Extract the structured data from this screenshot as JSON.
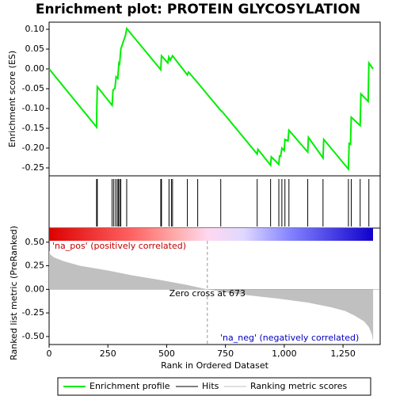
{
  "chart_data": [
    {
      "type": "line",
      "title": "Enrichment plot: PROTEIN GLYCOSYLATION",
      "y_label": "Enrichment score (ES)",
      "xlim": [
        0,
        1408
      ],
      "ylim": [
        -0.27,
        0.118
      ],
      "yticks": [
        {
          "value": 0.1,
          "label": "0.10"
        },
        {
          "value": 0.05,
          "label": "0.05"
        },
        {
          "value": 0,
          "label": "0.00"
        },
        {
          "value": -0.05,
          "label": "-0.05"
        },
        {
          "value": -0.1,
          "label": "-0.10"
        },
        {
          "value": -0.15,
          "label": "-0.15"
        },
        {
          "value": -0.2,
          "label": "-0.20"
        },
        {
          "value": -0.25,
          "label": "-0.25"
        }
      ],
      "series": [
        {
          "name": "Enrichment profile",
          "color": "#00ee00",
          "x": [
            0,
            202,
            203,
            205,
            268,
            272,
            280,
            285,
            292,
            297,
            300,
            305,
            325,
            330,
            475,
            478,
            505,
            509,
            515,
            525,
            588,
            593,
            632,
            730,
            735,
            885,
            888,
            942,
            945,
            977,
            980,
            985,
            990,
            1000,
            1003,
            1016,
            1020,
            1100,
            1103,
            1165,
            1168,
            1273,
            1276,
            1282,
            1285,
            1323,
            1326,
            1357,
            1360,
            1378
          ],
          "values": [
            0,
            -0.147,
            -0.097,
            -0.045,
            -0.092,
            -0.053,
            -0.049,
            -0.02,
            -0.024,
            0.015,
            0.013,
            0.05,
            0.085,
            0.102,
            -0.002,
            0.033,
            0.015,
            0.03,
            0.022,
            0.033,
            -0.015,
            -0.008,
            -0.035,
            -0.105,
            -0.107,
            -0.215,
            -0.203,
            -0.243,
            -0.222,
            -0.241,
            -0.22,
            -0.22,
            -0.2,
            -0.206,
            -0.178,
            -0.182,
            -0.155,
            -0.21,
            -0.173,
            -0.225,
            -0.178,
            -0.253,
            -0.188,
            -0.19,
            -0.122,
            -0.143,
            -0.063,
            -0.082,
            0.015,
            0
          ]
        },
        {
          "name": "Hits",
          "color": "#000000",
          "x": [
            202,
            205,
            268,
            275,
            283,
            290,
            295,
            300,
            305,
            330,
            475,
            478,
            510,
            520,
            525,
            588,
            632,
            730,
            885,
            942,
            977,
            990,
            1003,
            1020,
            1100,
            1165,
            1273,
            1285,
            1323,
            1360
          ]
        }
      ]
    },
    {
      "type": "area",
      "y_label": "Ranked list metric (PreRanked)",
      "x_label": "Rank in Ordered Dataset",
      "xlim": [
        0,
        1408
      ],
      "ylim": [
        -0.585,
        0.515
      ],
      "xticks": [
        0,
        250,
        500,
        750,
        {
          "value": 1000,
          "label": "1,000"
        },
        {
          "value": 1250,
          "label": "1,250"
        }
      ],
      "yticks": [
        {
          "value": 0.5,
          "label": "0.50"
        },
        {
          "value": 0.25,
          "label": "0.25"
        },
        {
          "value": 0,
          "label": "0.00"
        },
        {
          "value": -0.25,
          "label": "-0.25"
        },
        {
          "value": -0.5,
          "label": "-0.50"
        }
      ],
      "zero_cross": {
        "value": 673,
        "label": "Zero cross at 673"
      },
      "annotations": [
        "'na_pos' (positively correlated)",
        "'na_neg' (negatively correlated)"
      ],
      "series": [
        {
          "name": "Ranking metric scores",
          "color": "#c0c0c0",
          "x": [
            0,
            5,
            20,
            60,
            130,
            250,
            350,
            470,
            580,
            673,
            800,
            980,
            1100,
            1200,
            1260,
            1300,
            1340,
            1360,
            1372,
            1378
          ],
          "values": [
            0.41,
            0.37,
            0.34,
            0.3,
            0.25,
            0.2,
            0.15,
            0.1,
            0.05,
            0,
            -0.05,
            -0.1,
            -0.14,
            -0.19,
            -0.23,
            -0.28,
            -0.34,
            -0.4,
            -0.47,
            -0.55
          ]
        }
      ]
    }
  ]
}
